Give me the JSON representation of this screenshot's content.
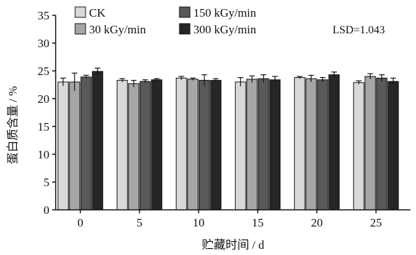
{
  "chart_data": {
    "type": "bar",
    "xlabel": "贮藏时间 / d",
    "ylabel": "蛋白质含量 / %",
    "ylim": [
      0,
      35
    ],
    "yticks": [
      0,
      5,
      10,
      15,
      20,
      25,
      30,
      35
    ],
    "categories": [
      "0",
      "5",
      "10",
      "15",
      "20",
      "25"
    ],
    "annotation": "LSD=1.043",
    "legend_position": "top-left",
    "grid": false,
    "series": [
      {
        "name": "CK",
        "color": "#d9d9d9",
        "values": [
          23.0,
          23.3,
          23.7,
          23.0,
          23.8,
          22.9
        ],
        "errors": [
          0.7,
          0.3,
          0.3,
          0.8,
          0.2,
          0.3
        ]
      },
      {
        "name": "30 kGy/min",
        "color": "#a6a6a6",
        "values": [
          23.0,
          22.7,
          23.5,
          23.5,
          23.6,
          24.0
        ],
        "errors": [
          1.6,
          0.6,
          0.2,
          0.6,
          0.6,
          0.5
        ]
      },
      {
        "name": "150 kGy/min",
        "color": "#595959",
        "values": [
          23.9,
          23.1,
          23.3,
          23.6,
          23.4,
          23.7
        ],
        "errors": [
          0.3,
          0.3,
          1.0,
          0.7,
          0.4,
          0.6
        ]
      },
      {
        "name": "300 kGy/min",
        "color": "#262626",
        "values": [
          24.9,
          23.4,
          23.3,
          23.4,
          24.3,
          23.1
        ],
        "errors": [
          0.6,
          0.2,
          0.3,
          0.6,
          0.5,
          0.6
        ]
      }
    ]
  }
}
